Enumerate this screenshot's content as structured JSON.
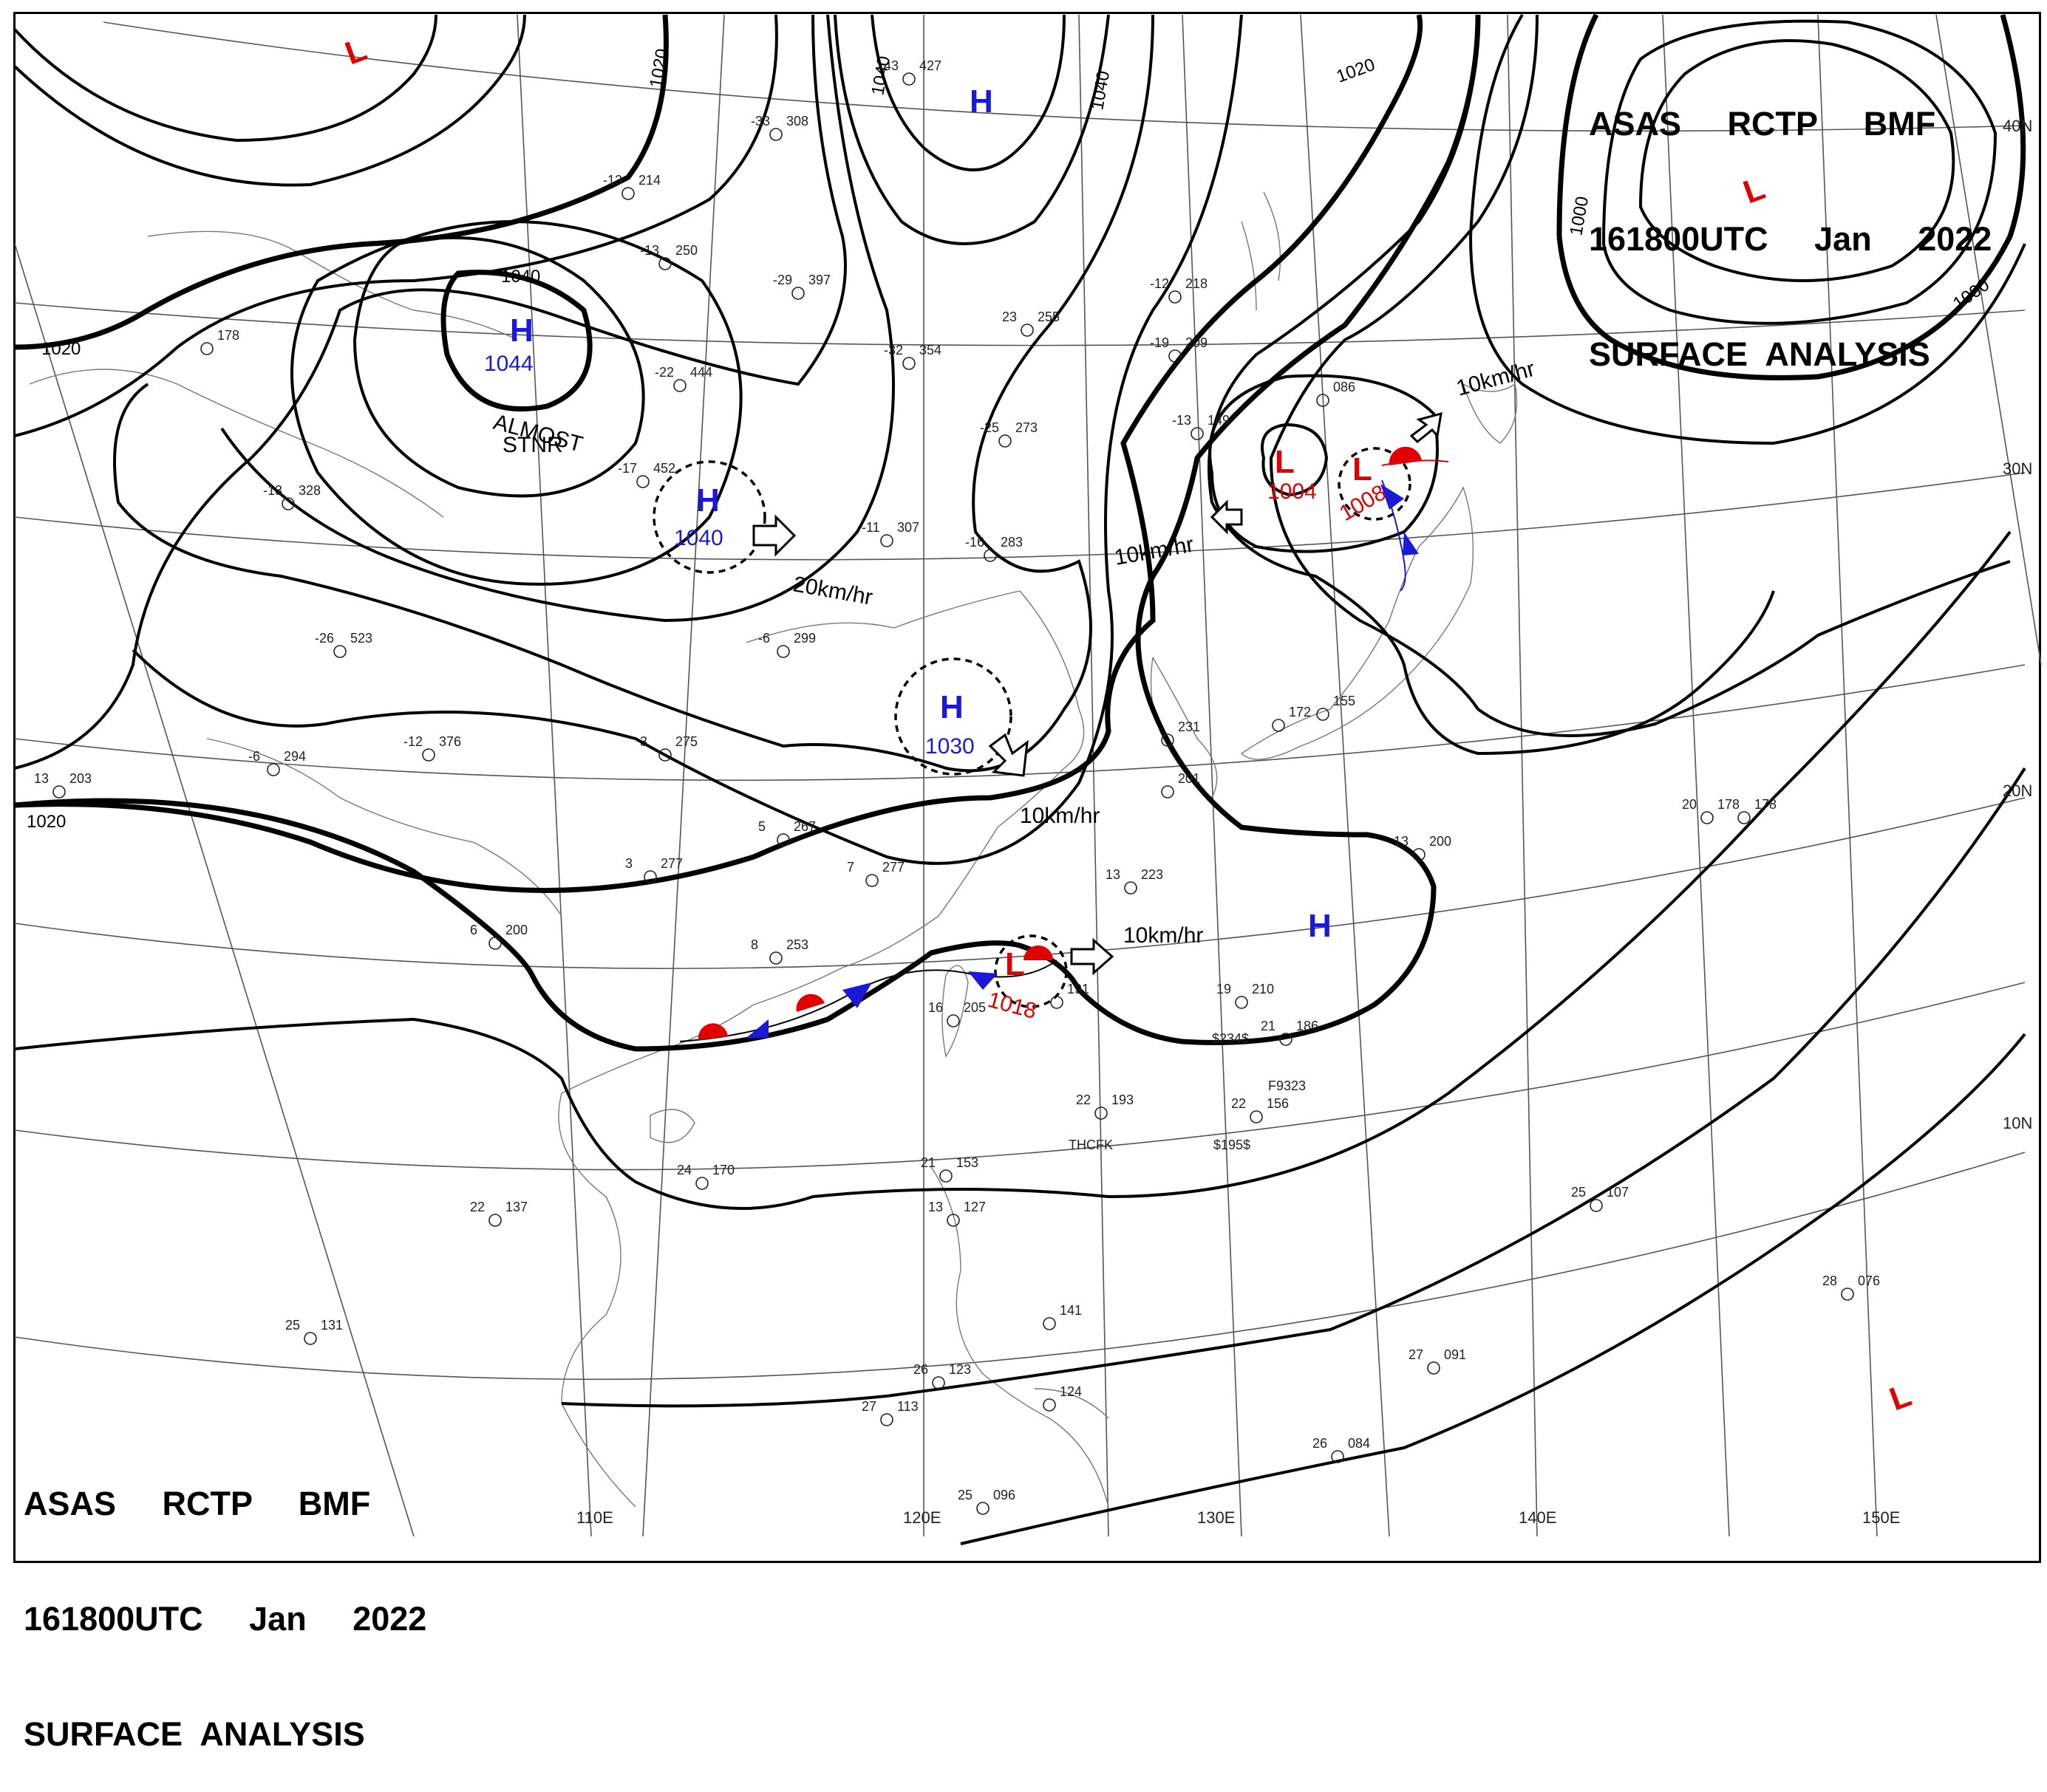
{
  "header": {
    "line1": "ASAS     RCTP     BMF",
    "line2": "161800UTC     Jan     2022",
    "line3": "SURFACE  ANALYSIS"
  },
  "footer": {
    "line1": "ASAS     RCTP     BMF",
    "line2": "161800UTC     Jan     2022",
    "line3": "SURFACE  ANALYSIS"
  },
  "grid_labels": {
    "lon_110": "110E",
    "lon_120": "120E",
    "lon_130": "130E",
    "lon_140": "140E",
    "lon_150": "150E",
    "lat_40": "40N",
    "lat_30": "30N",
    "lat_20": "20N",
    "lat_10": "10N"
  },
  "isobar_labels": [
    "1020",
    "1040",
    "1040",
    "1040",
    "1020",
    "1020",
    "1000",
    "1000",
    "1020"
  ],
  "pressure_centers": [
    {
      "type": "H",
      "value": "1044",
      "note": "ALMOST\nSTNR"
    },
    {
      "type": "H",
      "value": "1040"
    },
    {
      "type": "H",
      "value": "1030"
    },
    {
      "type": "H",
      "value": ""
    },
    {
      "type": "H",
      "value": ""
    },
    {
      "type": "L",
      "value": "1004"
    },
    {
      "type": "L",
      "value": "1008"
    },
    {
      "type": "L",
      "value": "1018"
    },
    {
      "type": "L",
      "value": ""
    },
    {
      "type": "L",
      "value": ""
    },
    {
      "type": "L",
      "value": ""
    }
  ],
  "motion_labels": {
    "m1": "20km/hr",
    "m2": "10km/hr",
    "m3": "10km/hr",
    "m4": "10km/hr",
    "m5": "10km/hr"
  },
  "notes": {
    "almost_1": "ALMOST",
    "almost_2": "STNR"
  },
  "stations": [
    {
      "t": "-13",
      "p": "214"
    },
    {
      "t": "-33",
      "p": "308"
    },
    {
      "t": "43",
      "p": "427"
    },
    {
      "t": "-13",
      "p": "250"
    },
    {
      "t": "-29",
      "p": "397"
    },
    {
      "t": "23",
      "p": "255"
    },
    {
      "t": "-32",
      "p": "354"
    },
    {
      "t": "-22",
      "p": "444"
    },
    {
      "t": "-17",
      "p": "452"
    },
    {
      "t": "-13",
      "p": "328"
    },
    {
      "t": "-26",
      "p": "523"
    },
    {
      "t": "-12",
      "p": "376"
    },
    {
      "t": "-6",
      "p": "294"
    },
    {
      "t": "13",
      "p": "203"
    },
    {
      "t": "-25",
      "p": "273"
    },
    {
      "t": "-11",
      "p": "307"
    },
    {
      "t": "-16",
      "p": "283"
    },
    {
      "t": "-6",
      "p": "299"
    },
    {
      "t": "3",
      "p": "275"
    },
    {
      "t": "5",
      "p": "267"
    },
    {
      "t": "3",
      "p": "277"
    },
    {
      "t": "7",
      "p": "277"
    },
    {
      "t": "8",
      "p": "253"
    },
    {
      "t": "6",
      "p": "200"
    },
    {
      "t": "16",
      "p": "205"
    },
    {
      "t": "13",
      "p": "223"
    },
    {
      "t": "19",
      "p": "210"
    },
    {
      "t": "13",
      "p": "200"
    },
    {
      "t": "20",
      "p": "178"
    },
    {
      "t": "22",
      "p": "193"
    },
    {
      "t": "22",
      "p": "156"
    },
    {
      "t": "21",
      "p": "186"
    },
    {
      "t": "24",
      "p": "170"
    },
    {
      "t": "22",
      "p": "137"
    },
    {
      "t": "21",
      "p": "153"
    },
    {
      "t": "13",
      "p": "127"
    },
    {
      "t": "25",
      "p": "131"
    },
    {
      "t": "26",
      "p": "123"
    },
    {
      "t": "27",
      "p": "113"
    },
    {
      "t": "25",
      "p": "096"
    },
    {
      "t": "27",
      "p": "091"
    },
    {
      "t": "26",
      "p": "084"
    },
    {
      "t": "25",
      "p": "107"
    },
    {
      "t": "28",
      "p": "076"
    },
    {
      "t": "-12",
      "p": "218"
    },
    {
      "t": "-19",
      "p": "209"
    },
    {
      "t": "-13",
      "p": "149"
    },
    {
      "t": "",
      "p": "086"
    },
    {
      "t": "",
      "p": "155"
    },
    {
      "t": "",
      "p": "172"
    },
    {
      "t": "",
      "p": "231"
    },
    {
      "t": "",
      "p": "201"
    },
    {
      "t": "",
      "p": "191"
    },
    {
      "t": "",
      "p": "141"
    },
    {
      "t": "",
      "p": "124"
    },
    {
      "t": "",
      "p": "178"
    },
    {
      "t": "",
      "p": "178"
    }
  ],
  "station_extra": {
    "thcfk": "THCFK",
    "s195": "$195$",
    "s234": "$234$",
    "s9323": "F9323"
  },
  "colors": {
    "high": "#1a1ad6",
    "low": "#e00000",
    "isobar": "#000000",
    "grid": "#555555",
    "coast": "#777777",
    "cold_front": "#1a1ad6",
    "warm_front": "#e00000"
  }
}
